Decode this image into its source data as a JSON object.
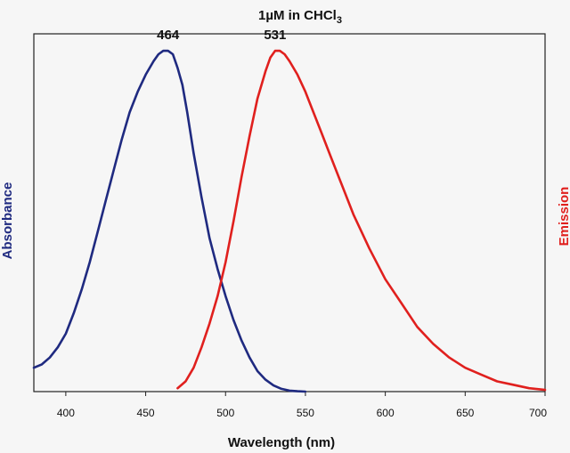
{
  "chart_data": {
    "type": "line",
    "title": {
      "main": "1µM in CHCl",
      "subscript": "3"
    },
    "xlabel": "Wavelength (nm)",
    "ylabel_left": "Absorbance",
    "ylabel_right": "Emission",
    "xlim": [
      380,
      700
    ],
    "ylim": [
      0,
      1.05
    ],
    "xticks": [
      "400",
      "450",
      "500",
      "550",
      "600",
      "650",
      "700"
    ],
    "grid": false,
    "annotations": [
      {
        "text": "464",
        "x": 464,
        "series": "absorbance"
      },
      {
        "text": "531",
        "x": 531,
        "series": "emission"
      }
    ],
    "series": [
      {
        "id": "absorbance",
        "color": "#1f2a80",
        "x": [
          380,
          385,
          390,
          395,
          400,
          405,
          410,
          415,
          420,
          425,
          430,
          435,
          440,
          445,
          450,
          455,
          458,
          461,
          464,
          467,
          470,
          473,
          476,
          480,
          485,
          490,
          495,
          500,
          505,
          510,
          515,
          520,
          525,
          530,
          535,
          540,
          545,
          550
        ],
        "y": [
          0.07,
          0.08,
          0.1,
          0.13,
          0.17,
          0.23,
          0.3,
          0.38,
          0.47,
          0.56,
          0.65,
          0.74,
          0.82,
          0.88,
          0.93,
          0.97,
          0.99,
          1.0,
          1.0,
          0.99,
          0.95,
          0.9,
          0.82,
          0.7,
          0.57,
          0.45,
          0.36,
          0.28,
          0.21,
          0.15,
          0.1,
          0.06,
          0.035,
          0.018,
          0.008,
          0.003,
          0.001,
          0.0
        ]
      },
      {
        "id": "emission",
        "color": "#e0201e",
        "x": [
          470,
          475,
          480,
          485,
          490,
          495,
          500,
          505,
          510,
          515,
          520,
          525,
          528,
          531,
          534,
          537,
          540,
          545,
          550,
          555,
          560,
          565,
          570,
          575,
          580,
          590,
          600,
          610,
          620,
          630,
          640,
          650,
          660,
          670,
          680,
          690,
          700
        ],
        "y": [
          0.01,
          0.03,
          0.07,
          0.13,
          0.2,
          0.28,
          0.38,
          0.5,
          0.63,
          0.75,
          0.86,
          0.94,
          0.98,
          1.0,
          1.0,
          0.99,
          0.97,
          0.93,
          0.88,
          0.82,
          0.76,
          0.7,
          0.64,
          0.58,
          0.52,
          0.42,
          0.33,
          0.26,
          0.19,
          0.14,
          0.1,
          0.07,
          0.05,
          0.03,
          0.02,
          0.01,
          0.005
        ]
      }
    ]
  }
}
